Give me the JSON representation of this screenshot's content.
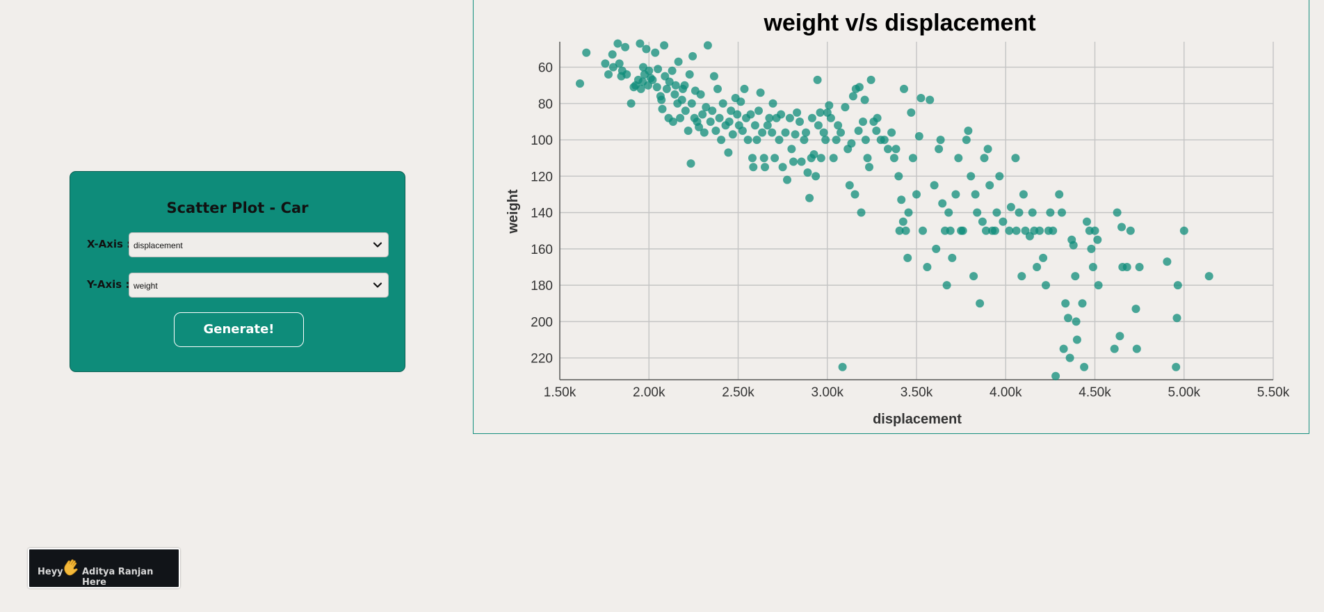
{
  "panel": {
    "title": "Scatter Plot - Car",
    "x_axis_label": "X-Axis :",
    "x_axis_value": "displacement",
    "y_axis_label": "Y-Axis :",
    "y_axis_value": "weight",
    "generate_label": "Generate!"
  },
  "badge": {
    "greeting": "Heyy",
    "name_text": "Aditya Ranjan Here",
    "icon": "waving-hand-icon"
  },
  "colors": {
    "page_bg": "#f1eeeb",
    "panel_bg": "#0e8c7a",
    "point": "#0e8c7a",
    "grid": "#c4c4c4"
  },
  "chart_data": {
    "type": "scatter",
    "title": "weight v/s displacement",
    "xlabel": "displacement",
    "ylabel": "weight",
    "xlim": [
      1500,
      5500
    ],
    "ylim": [
      46,
      232
    ],
    "y_inverted": true,
    "grid": true,
    "xticks": [
      1500,
      2000,
      2500,
      3000,
      3500,
      4000,
      4500,
      5000,
      5500
    ],
    "xtick_labels": [
      "1.50k",
      "2.00k",
      "2.50k",
      "3.00k",
      "3.50k",
      "4.00k",
      "4.50k",
      "5.00k",
      "5.50k"
    ],
    "yticks": [
      60,
      80,
      100,
      120,
      140,
      160,
      180,
      200,
      220
    ],
    "ytick_labels": [
      "60",
      "80",
      "100",
      "120",
      "140",
      "160",
      "180",
      "200",
      "220"
    ],
    "points": [
      [
        1613,
        69
      ],
      [
        1649,
        52
      ],
      [
        1755,
        58
      ],
      [
        1773,
        64
      ],
      [
        1795,
        53
      ],
      [
        1800,
        60
      ],
      [
        1825,
        47
      ],
      [
        1834,
        58
      ],
      [
        1845,
        65
      ],
      [
        1850,
        62
      ],
      [
        1867,
        49
      ],
      [
        1875,
        64
      ],
      [
        1900,
        80
      ],
      [
        1915,
        71
      ],
      [
        1925,
        70
      ],
      [
        1940,
        67
      ],
      [
        1950,
        47
      ],
      [
        1955,
        72
      ],
      [
        1965,
        68
      ],
      [
        1968,
        60
      ],
      [
        1975,
        64
      ],
      [
        1985,
        50
      ],
      [
        1995,
        70
      ],
      [
        2000,
        62
      ],
      [
        2010,
        66
      ],
      [
        2020,
        67
      ],
      [
        2035,
        52
      ],
      [
        2045,
        71
      ],
      [
        2050,
        61
      ],
      [
        2065,
        76
      ],
      [
        2070,
        78
      ],
      [
        2075,
        83
      ],
      [
        2085,
        48
      ],
      [
        2090,
        65
      ],
      [
        2100,
        72
      ],
      [
        2110,
        88
      ],
      [
        2115,
        68
      ],
      [
        2130,
        62
      ],
      [
        2135,
        90
      ],
      [
        2145,
        75
      ],
      [
        2150,
        70
      ],
      [
        2160,
        80
      ],
      [
        2165,
        57
      ],
      [
        2175,
        88
      ],
      [
        2185,
        78
      ],
      [
        2190,
        72
      ],
      [
        2200,
        70
      ],
      [
        2205,
        84
      ],
      [
        2220,
        95
      ],
      [
        2228,
        64
      ],
      [
        2235,
        113
      ],
      [
        2240,
        80
      ],
      [
        2245,
        54
      ],
      [
        2255,
        88
      ],
      [
        2260,
        73
      ],
      [
        2270,
        90
      ],
      [
        2280,
        93
      ],
      [
        2290,
        75
      ],
      [
        2300,
        86
      ],
      [
        2310,
        96
      ],
      [
        2320,
        82
      ],
      [
        2330,
        48
      ],
      [
        2345,
        90
      ],
      [
        2355,
        84
      ],
      [
        2365,
        65
      ],
      [
        2375,
        95
      ],
      [
        2385,
        72
      ],
      [
        2395,
        88
      ],
      [
        2405,
        100
      ],
      [
        2415,
        80
      ],
      [
        2430,
        92
      ],
      [
        2445,
        107
      ],
      [
        2450,
        90
      ],
      [
        2460,
        84
      ],
      [
        2470,
        97
      ],
      [
        2485,
        77
      ],
      [
        2495,
        86
      ],
      [
        2505,
        92
      ],
      [
        2515,
        79
      ],
      [
        2525,
        95
      ],
      [
        2535,
        72
      ],
      [
        2545,
        88
      ],
      [
        2555,
        100
      ],
      [
        2570,
        86
      ],
      [
        2580,
        110
      ],
      [
        2585,
        115
      ],
      [
        2595,
        92
      ],
      [
        2605,
        100
      ],
      [
        2615,
        84
      ],
      [
        2625,
        74
      ],
      [
        2635,
        96
      ],
      [
        2645,
        110
      ],
      [
        2650,
        115
      ],
      [
        2665,
        92
      ],
      [
        2675,
        88
      ],
      [
        2690,
        96
      ],
      [
        2695,
        80
      ],
      [
        2705,
        110
      ],
      [
        2715,
        88
      ],
      [
        2730,
        100
      ],
      [
        2740,
        86
      ],
      [
        2750,
        115
      ],
      [
        2765,
        96
      ],
      [
        2775,
        122
      ],
      [
        2790,
        88
      ],
      [
        2800,
        105
      ],
      [
        2810,
        112
      ],
      [
        2820,
        97
      ],
      [
        2830,
        85
      ],
      [
        2845,
        90
      ],
      [
        2855,
        112
      ],
      [
        2870,
        100
      ],
      [
        2880,
        96
      ],
      [
        2890,
        118
      ],
      [
        2900,
        132
      ],
      [
        2910,
        110
      ],
      [
        2915,
        88
      ],
      [
        2925,
        108
      ],
      [
        2935,
        120
      ],
      [
        2945,
        67
      ],
      [
        2950,
        92
      ],
      [
        2960,
        85
      ],
      [
        2965,
        110
      ],
      [
        2980,
        96
      ],
      [
        2990,
        100
      ],
      [
        3000,
        85
      ],
      [
        3010,
        81
      ],
      [
        3020,
        88
      ],
      [
        3035,
        110
      ],
      [
        3050,
        100
      ],
      [
        3060,
        92
      ],
      [
        3075,
        96
      ],
      [
        3085,
        225
      ],
      [
        3100,
        82
      ],
      [
        3115,
        105
      ],
      [
        3125,
        125
      ],
      [
        3135,
        102
      ],
      [
        3145,
        76
      ],
      [
        3155,
        130
      ],
      [
        3160,
        72
      ],
      [
        3175,
        95
      ],
      [
        3180,
        71
      ],
      [
        3190,
        140
      ],
      [
        3200,
        90
      ],
      [
        3210,
        78
      ],
      [
        3215,
        100
      ],
      [
        3225,
        110
      ],
      [
        3235,
        115
      ],
      [
        3245,
        67
      ],
      [
        3260,
        90
      ],
      [
        3275,
        95
      ],
      [
        3280,
        88
      ],
      [
        3300,
        100
      ],
      [
        3320,
        100
      ],
      [
        3340,
        105
      ],
      [
        3360,
        96
      ],
      [
        3375,
        110
      ],
      [
        3385,
        105
      ],
      [
        3400,
        120
      ],
      [
        3405,
        150
      ],
      [
        3415,
        133
      ],
      [
        3425,
        145
      ],
      [
        3430,
        72
      ],
      [
        3440,
        150
      ],
      [
        3450,
        165
      ],
      [
        3455,
        140
      ],
      [
        3470,
        85
      ],
      [
        3480,
        110
      ],
      [
        3500,
        130
      ],
      [
        3515,
        98
      ],
      [
        3525,
        77
      ],
      [
        3535,
        150
      ],
      [
        3560,
        170
      ],
      [
        3575,
        78
      ],
      [
        3600,
        125
      ],
      [
        3610,
        160
      ],
      [
        3625,
        105
      ],
      [
        3635,
        100
      ],
      [
        3645,
        135
      ],
      [
        3660,
        150
      ],
      [
        3670,
        180
      ],
      [
        3680,
        140
      ],
      [
        3690,
        150
      ],
      [
        3700,
        165
      ],
      [
        3720,
        130
      ],
      [
        3735,
        110
      ],
      [
        3750,
        150
      ],
      [
        3760,
        150
      ],
      [
        3780,
        100
      ],
      [
        3790,
        95
      ],
      [
        3805,
        120
      ],
      [
        3820,
        175
      ],
      [
        3830,
        130
      ],
      [
        3840,
        140
      ],
      [
        3855,
        190
      ],
      [
        3870,
        145
      ],
      [
        3880,
        110
      ],
      [
        3890,
        150
      ],
      [
        3900,
        105
      ],
      [
        3910,
        125
      ],
      [
        3925,
        150
      ],
      [
        3940,
        150
      ],
      [
        3950,
        140
      ],
      [
        3965,
        120
      ],
      [
        3985,
        145
      ],
      [
        4020,
        150
      ],
      [
        4030,
        137
      ],
      [
        4055,
        110
      ],
      [
        4060,
        150
      ],
      [
        4075,
        140
      ],
      [
        4090,
        175
      ],
      [
        4100,
        130
      ],
      [
        4110,
        150
      ],
      [
        4135,
        153
      ],
      [
        4150,
        140
      ],
      [
        4160,
        150
      ],
      [
        4175,
        170
      ],
      [
        4190,
        150
      ],
      [
        4210,
        165
      ],
      [
        4225,
        180
      ],
      [
        4240,
        150
      ],
      [
        4250,
        140
      ],
      [
        4265,
        150
      ],
      [
        4280,
        230
      ],
      [
        4300,
        130
      ],
      [
        4315,
        140
      ],
      [
        4325,
        215
      ],
      [
        4335,
        190
      ],
      [
        4350,
        198
      ],
      [
        4360,
        220
      ],
      [
        4370,
        155
      ],
      [
        4380,
        158
      ],
      [
        4390,
        175
      ],
      [
        4395,
        200
      ],
      [
        4400,
        210
      ],
      [
        4430,
        190
      ],
      [
        4440,
        225
      ],
      [
        4455,
        145
      ],
      [
        4470,
        150
      ],
      [
        4480,
        160
      ],
      [
        4490,
        170
      ],
      [
        4500,
        150
      ],
      [
        4515,
        155
      ],
      [
        4520,
        180
      ],
      [
        4610,
        215
      ],
      [
        4625,
        140
      ],
      [
        4640,
        208
      ],
      [
        4650,
        148
      ],
      [
        4655,
        170
      ],
      [
        4680,
        170
      ],
      [
        4700,
        150
      ],
      [
        4730,
        193
      ],
      [
        4735,
        215
      ],
      [
        4750,
        170
      ],
      [
        4905,
        167
      ],
      [
        4955,
        225
      ],
      [
        4960,
        198
      ],
      [
        4965,
        180
      ],
      [
        5000,
        150
      ],
      [
        5140,
        175
      ]
    ]
  }
}
